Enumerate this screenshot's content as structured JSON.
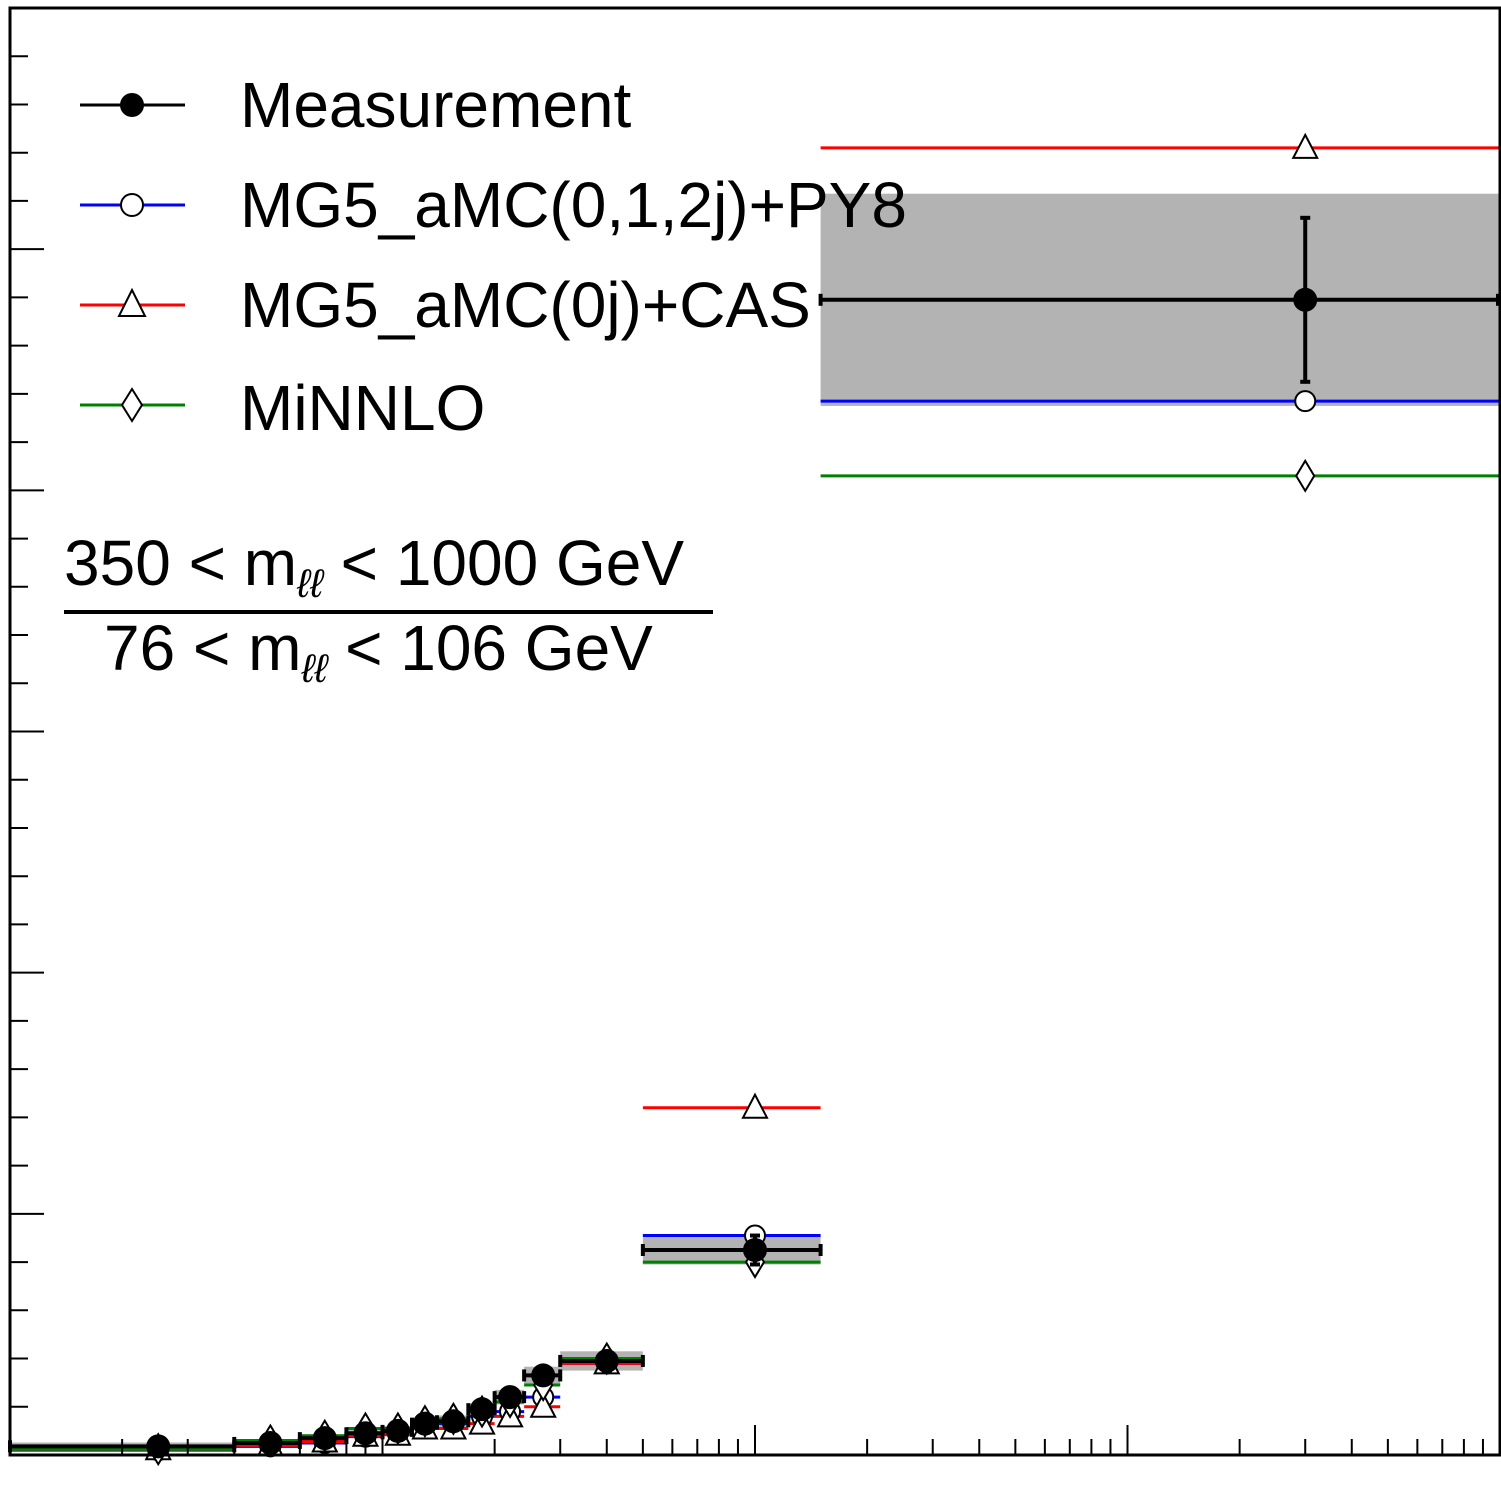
{
  "legend": {
    "items": [
      {
        "label": "Measurement",
        "color": "#000000",
        "marker": "filled-circle"
      },
      {
        "label": "MG5_aMC(0,1,2j)+PY8",
        "color": "#0000ff",
        "marker": "open-circle"
      },
      {
        "label": "MG5_aMC(0j)+CAS",
        "color": "#ff0000",
        "marker": "open-triangle"
      },
      {
        "label": "MiNNLO",
        "color": "#008000",
        "marker": "open-diamond"
      }
    ]
  },
  "ratio_label": {
    "num_pre": "350 < m",
    "num_sub": "ℓℓ",
    "num_post": " < 1000 GeV",
    "den_pre": "76 < m",
    "den_sub": "ℓℓ",
    "den_post": " < 106 GeV"
  },
  "chart_data": {
    "type": "line",
    "x_scale": "log",
    "grid": false,
    "legend_position": "top-left",
    "xlim": [
      0.1,
      1000
    ],
    "ylim": [
      0,
      3.0
    ],
    "bins": [
      [
        0.1,
        0.4
      ],
      [
        0.4,
        0.6
      ],
      [
        0.6,
        0.8
      ],
      [
        0.8,
        1.0
      ],
      [
        1.0,
        1.2
      ],
      [
        1.2,
        1.4
      ],
      [
        1.4,
        1.7
      ],
      [
        1.7,
        2.0
      ],
      [
        2.0,
        2.4
      ],
      [
        2.4,
        3.0
      ],
      [
        3.0,
        5.0
      ],
      [
        5.0,
        15.0
      ],
      [
        15.0,
        1000.0
      ]
    ],
    "x_points": [
      0.25,
      0.5,
      0.7,
      0.9,
      1.1,
      1.3,
      1.55,
      1.85,
      2.2,
      2.7,
      4.0,
      10.0,
      300.0
    ],
    "series": [
      {
        "name": "Measurement",
        "color": "#000000",
        "values": [
          0.018,
          0.025,
          0.035,
          0.045,
          0.05,
          0.065,
          0.07,
          0.095,
          0.12,
          0.165,
          0.195,
          0.425,
          2.395
        ],
        "errors": [
          0.005,
          0.005,
          0.006,
          0.006,
          0.007,
          0.008,
          0.009,
          0.01,
          0.012,
          0.015,
          0.02,
          0.03,
          0.17
        ],
        "band": [
          0.008,
          0.008,
          0.008,
          0.008,
          0.01,
          0.01,
          0.012,
          0.012,
          0.015,
          0.018,
          0.02,
          0.03,
          0.22
        ]
      },
      {
        "name": "MG5_aMC(0,1,2j)+PY8",
        "color": "#0000ff",
        "values": [
          0.01,
          0.018,
          0.025,
          0.038,
          0.045,
          0.06,
          0.065,
          0.08,
          0.09,
          0.12,
          0.19,
          0.455,
          2.185
        ]
      },
      {
        "name": "MG5_aMC(0j)+CAS",
        "color": "#ff0000",
        "values": [
          0.012,
          0.02,
          0.028,
          0.04,
          0.042,
          0.055,
          0.055,
          0.065,
          0.08,
          0.1,
          0.19,
          0.72,
          2.71
        ]
      },
      {
        "name": "MiNNLO",
        "color": "#008000",
        "values": [
          0.012,
          0.03,
          0.04,
          0.055,
          0.055,
          0.07,
          0.075,
          0.09,
          0.11,
          0.145,
          0.2,
          0.4,
          2.03
        ]
      }
    ]
  }
}
